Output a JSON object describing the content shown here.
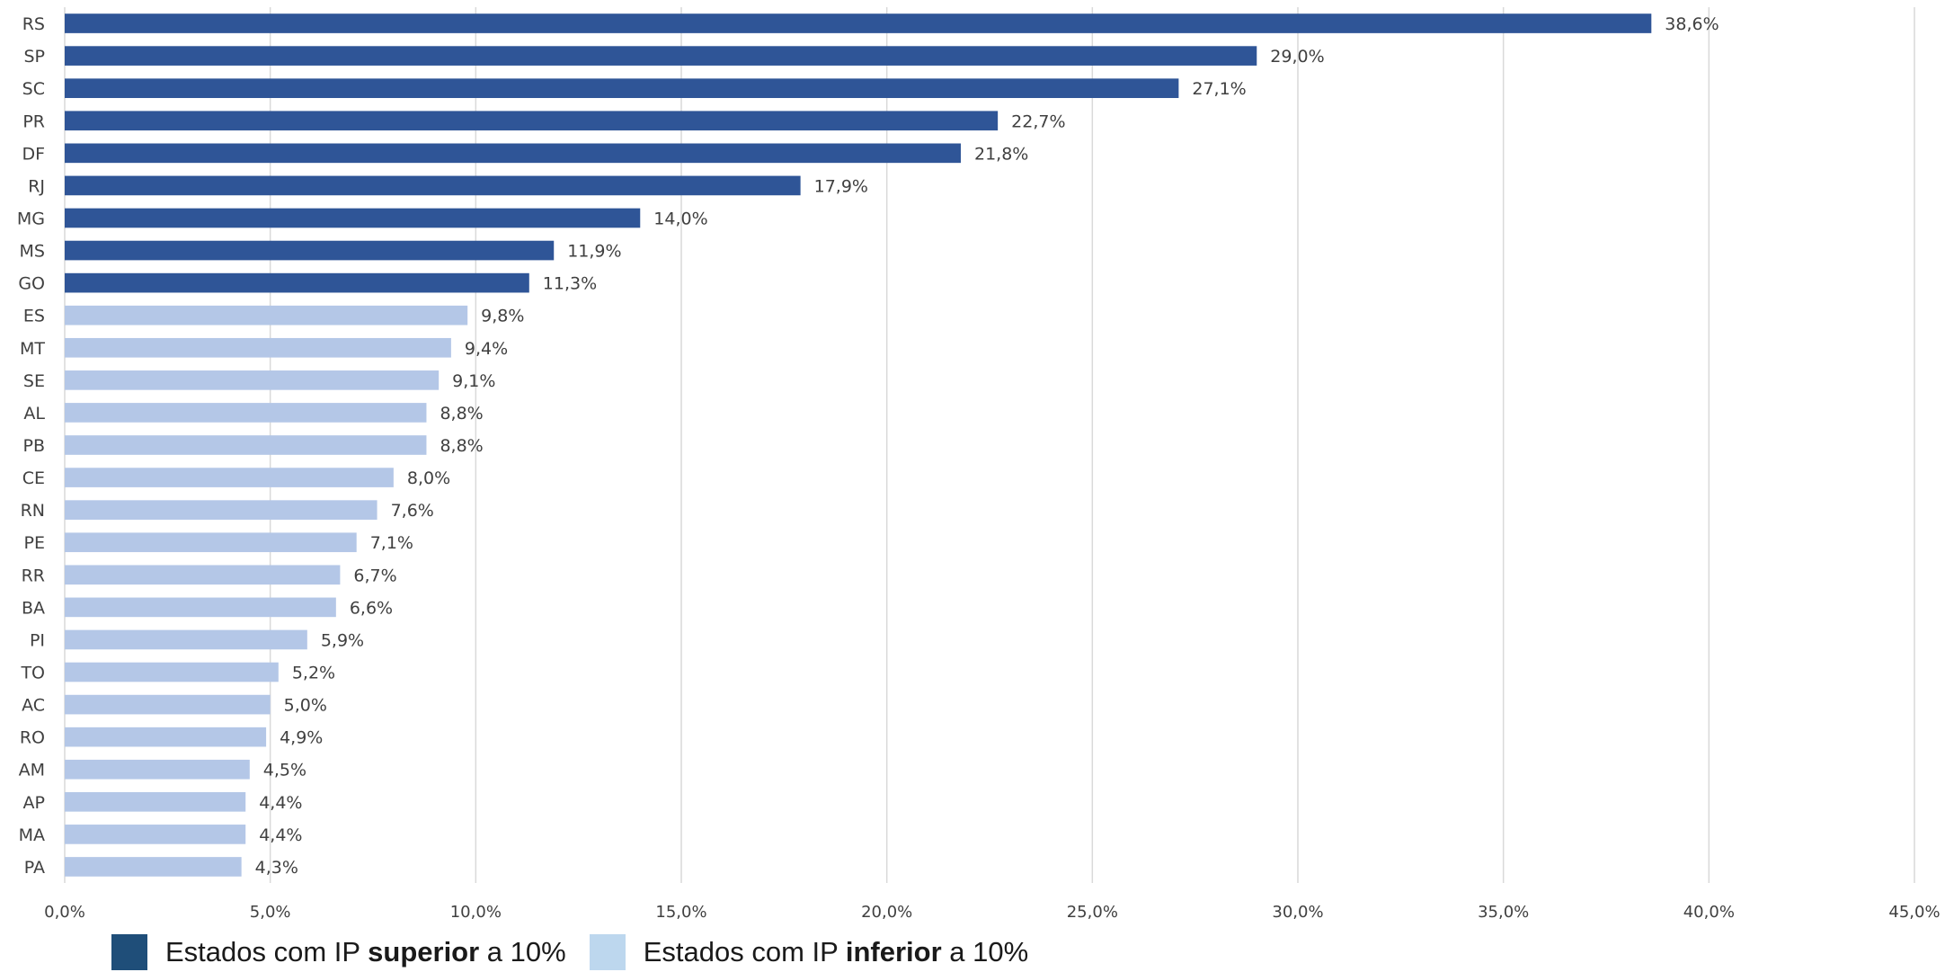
{
  "colors": {
    "above": "#2f5597",
    "below": "#b4c7e7",
    "legend_above": "#1f4e79",
    "legend_below": "#bdd7ee"
  },
  "legend": {
    "above": {
      "prefix": "Estados com IP ",
      "bold": "superior",
      "suffix": " a 10%"
    },
    "below": {
      "prefix": "Estados com IP ",
      "bold": "inferior",
      "suffix": " a 10%"
    }
  },
  "chart_data": {
    "type": "bar",
    "orientation": "horizontal",
    "threshold": 10,
    "categories": [
      "RS",
      "SP",
      "SC",
      "PR",
      "DF",
      "RJ",
      "MG",
      "MS",
      "GO",
      "ES",
      "MT",
      "SE",
      "AL",
      "PB",
      "CE",
      "RN",
      "PE",
      "RR",
      "BA",
      "PI",
      "TO",
      "AC",
      "RO",
      "AM",
      "AP",
      "MA",
      "PA"
    ],
    "values": [
      38.6,
      29.0,
      27.1,
      22.7,
      21.8,
      17.9,
      14.0,
      11.9,
      11.3,
      9.8,
      9.4,
      9.1,
      8.8,
      8.8,
      8.0,
      7.6,
      7.1,
      6.7,
      6.6,
      5.9,
      5.2,
      5.0,
      4.9,
      4.5,
      4.4,
      4.4,
      4.3
    ],
    "value_labels": [
      "38,6%",
      "29,0%",
      "27,1%",
      "22,7%",
      "21,8%",
      "17,9%",
      "14,0%",
      "11,9%",
      "11,3%",
      "9,8%",
      "9,4%",
      "9,1%",
      "8,8%",
      "8,8%",
      "8,0%",
      "7,6%",
      "7,1%",
      "6,7%",
      "6,6%",
      "5,9%",
      "5,2%",
      "5,0%",
      "4,9%",
      "4,5%",
      "4,4%",
      "4,4%",
      "4,3%"
    ],
    "x_ticks": [
      0,
      5,
      10,
      15,
      20,
      25,
      30,
      35,
      40,
      45
    ],
    "x_tick_labels": [
      "0,0%",
      "5,0%",
      "10,0%",
      "15,0%",
      "20,0%",
      "25,0%",
      "30,0%",
      "35,0%",
      "40,0%",
      "45,0%"
    ],
    "xlim": [
      0,
      45
    ],
    "grid": "vertical",
    "legend_position": "bottom-left"
  }
}
